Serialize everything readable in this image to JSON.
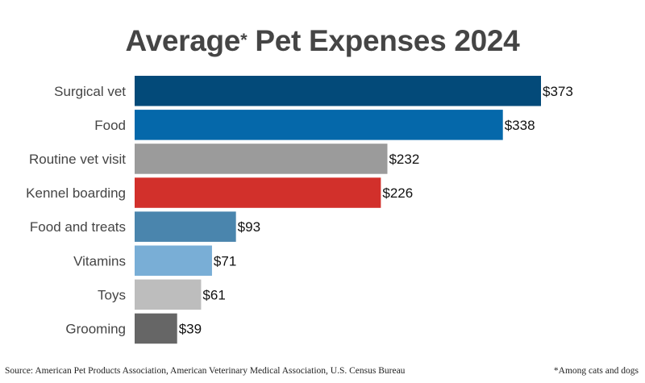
{
  "chart_data": {
    "type": "bar",
    "orientation": "horizontal",
    "title": "Average",
    "title_asterisk": "*",
    "title_rest": " Pet Expenses 2024",
    "categories": [
      "Surgical vet",
      "Food",
      "Routine vet visit",
      "Kennel boarding",
      "Food and treats",
      "Vitamins",
      "Toys",
      "Grooming"
    ],
    "values": [
      373,
      338,
      232,
      226,
      93,
      71,
      61,
      39
    ],
    "value_labels": [
      "$373",
      "$338",
      "$232",
      "$226",
      "$93",
      "$71",
      "$61",
      "$39"
    ],
    "colors": [
      "#034a79",
      "#0568aa",
      "#9b9b9b",
      "#d2302b",
      "#4a85ad",
      "#79aed6",
      "#bdbdbd",
      "#666666"
    ],
    "xlabel": "",
    "ylabel": "",
    "xlim": [
      0,
      373
    ],
    "grid": false,
    "legend": "none",
    "source": "Source: American Pet Products Association, American Veterinary Medical Association, U.S. Census Bureau",
    "footnote": "*Among cats and dogs"
  }
}
